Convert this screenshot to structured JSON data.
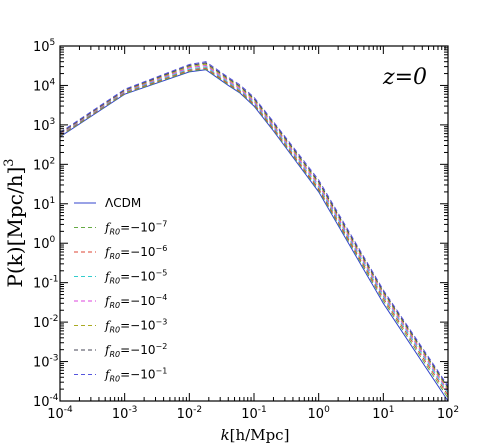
{
  "chart_data": {
    "type": "line",
    "title": "",
    "xlabel": "k[h/Mpc]",
    "ylabel": "P(k)[Mpc/h]^3",
    "xscale": "log",
    "yscale": "log",
    "xlim": [
      0.0001,
      100
    ],
    "ylim": [
      0.0001,
      100000
    ],
    "grid": false,
    "legend_position": "lower-left",
    "annotation": "z=0",
    "x_tick_labels": [
      {
        "base": "10",
        "exp": "-4"
      },
      {
        "base": "10",
        "exp": "-3"
      },
      {
        "base": "10",
        "exp": "-2"
      },
      {
        "base": "10",
        "exp": "-1"
      },
      {
        "base": "10",
        "exp": "0"
      },
      {
        "base": "10",
        "exp": "1"
      },
      {
        "base": "10",
        "exp": "2"
      }
    ],
    "y_tick_labels": [
      {
        "base": "10",
        "exp": "-4"
      },
      {
        "base": "10",
        "exp": "-3"
      },
      {
        "base": "10",
        "exp": "-2"
      },
      {
        "base": "10",
        "exp": "-1"
      },
      {
        "base": "10",
        "exp": "0"
      },
      {
        "base": "10",
        "exp": "1"
      },
      {
        "base": "10",
        "exp": "2"
      },
      {
        "base": "10",
        "exp": "3"
      },
      {
        "base": "10",
        "exp": "4"
      },
      {
        "base": "10",
        "exp": "5"
      }
    ],
    "series": [
      {
        "name": "ΛCDM",
        "color": "#3344cc",
        "dash": "solid",
        "x": [
          0.0001,
          0.001,
          0.01,
          0.018,
          0.04,
          0.06,
          0.1,
          0.2,
          1,
          10,
          100
        ],
        "y": [
          500,
          6000,
          22000,
          25000,
          10000,
          6500,
          3000,
          700,
          20,
          0.03,
          0.0001
        ]
      },
      {
        "name": "f_R0=−10^{−7}",
        "color": "#66aa44",
        "dash": "dashed",
        "x": [
          0.0001,
          0.001,
          0.01,
          0.018,
          0.04,
          0.06,
          0.1,
          0.2,
          1,
          10,
          100
        ],
        "y": [
          520,
          6200,
          23000,
          26000,
          10500,
          6800,
          3200,
          750,
          22,
          0.035,
          0.00012
        ]
      },
      {
        "name": "f_R0=−10^{−6}",
        "color": "#dd4433",
        "dash": "dashed",
        "x": [
          0.0001,
          0.001,
          0.01,
          0.018,
          0.04,
          0.06,
          0.1,
          0.2,
          1,
          10,
          100
        ],
        "y": [
          540,
          6500,
          24500,
          27500,
          11200,
          7200,
          3400,
          800,
          24,
          0.04,
          0.00014
        ]
      },
      {
        "name": "f_R0=−10^{−5}",
        "color": "#33cccc",
        "dash": "dashed",
        "x": [
          0.0001,
          0.001,
          0.01,
          0.018,
          0.04,
          0.06,
          0.1,
          0.2,
          1,
          10,
          100
        ],
        "y": [
          560,
          6800,
          26000,
          29500,
          12000,
          7700,
          3650,
          870,
          27,
          0.045,
          0.00016
        ]
      },
      {
        "name": "f_R0=−10^{−4}",
        "color": "#dd44dd",
        "dash": "dashed",
        "x": [
          0.0001,
          0.001,
          0.01,
          0.018,
          0.04,
          0.06,
          0.1,
          0.2,
          1,
          10,
          100
        ],
        "y": [
          580,
          7100,
          28000,
          32000,
          13000,
          8300,
          3950,
          950,
          30,
          0.05,
          0.00018
        ]
      },
      {
        "name": "f_R0=−10^{−3}",
        "color": "#aaaa22",
        "dash": "dashed",
        "x": [
          0.0001,
          0.001,
          0.01,
          0.018,
          0.04,
          0.06,
          0.1,
          0.2,
          1,
          10,
          100
        ],
        "y": [
          600,
          7400,
          30000,
          34500,
          14000,
          9000,
          4300,
          1030,
          33,
          0.055,
          0.0002
        ]
      },
      {
        "name": "f_R0=−10^{−2}",
        "color": "#444455",
        "dash": "dashed",
        "x": [
          0.0001,
          0.001,
          0.01,
          0.018,
          0.04,
          0.06,
          0.1,
          0.2,
          1,
          10,
          100
        ],
        "y": [
          620,
          7700,
          32000,
          37000,
          15000,
          9700,
          4650,
          1120,
          36,
          0.06,
          0.00022
        ]
      },
      {
        "name": "f_R0=−10^{−1}",
        "color": "#5555dd",
        "dash": "dashed",
        "x": [
          0.0001,
          0.001,
          0.01,
          0.018,
          0.04,
          0.06,
          0.1,
          0.2,
          1,
          10,
          100
        ],
        "y": [
          640,
          8000,
          34000,
          40000,
          16000,
          10500,
          5000,
          1200,
          40,
          0.065,
          0.00024
        ]
      }
    ],
    "legend": [
      {
        "kind": "plain",
        "text": "ΛCDM",
        "color": "#3344cc",
        "dash": "solid"
      },
      {
        "kind": "fr",
        "f": "f",
        "sub": "R0",
        "rest": "=−10",
        "exp": "−7",
        "color": "#66aa44",
        "dash": "dashed"
      },
      {
        "kind": "fr",
        "f": "f",
        "sub": "R0",
        "rest": "=−10",
        "exp": "−6",
        "color": "#dd4433",
        "dash": "dashed"
      },
      {
        "kind": "fr",
        "f": "f",
        "sub": "R0",
        "rest": "=−10",
        "exp": "−5",
        "color": "#33cccc",
        "dash": "dashed"
      },
      {
        "kind": "fr",
        "f": "f",
        "sub": "R0",
        "rest": "=−10",
        "exp": "−4",
        "color": "#dd44dd",
        "dash": "dashed"
      },
      {
        "kind": "fr",
        "f": "f",
        "sub": "R0",
        "rest": "=−10",
        "exp": "−3",
        "color": "#aaaa22",
        "dash": "dashed"
      },
      {
        "kind": "fr",
        "f": "f",
        "sub": "R0",
        "rest": "=−10",
        "exp": "−2",
        "color": "#444455",
        "dash": "dashed"
      },
      {
        "kind": "fr",
        "f": "f",
        "sub": "R0",
        "rest": "=−10",
        "exp": "−1",
        "color": "#5555dd",
        "dash": "dashed"
      }
    ]
  },
  "labels": {
    "xlabel_k": "k",
    "xlabel_unit": "[h/Mpc]",
    "ylabel_main": "P(k)[Mpc/h]",
    "ylabel_exp": "3",
    "annotation": "z=0"
  }
}
